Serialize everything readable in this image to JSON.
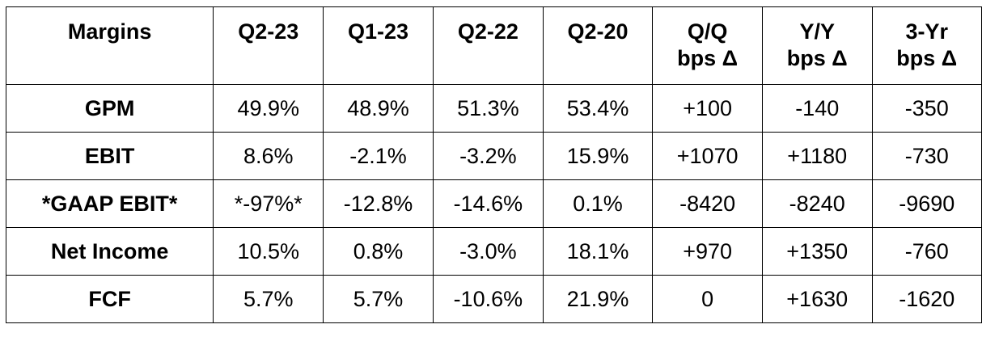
{
  "table": {
    "header": {
      "label": "Margins",
      "columns": [
        [
          "Q2-23"
        ],
        [
          "Q1-23"
        ],
        [
          "Q2-22"
        ],
        [
          "Q2-20"
        ],
        [
          "Q/Q",
          "bps Δ"
        ],
        [
          "Y/Y",
          "bps Δ"
        ],
        [
          "3-Yr",
          "bps Δ"
        ]
      ]
    },
    "rows": [
      {
        "label": "GPM",
        "values": [
          "49.9%",
          "48.9%",
          "51.3%",
          "53.4%",
          "+100",
          "-140",
          "-350"
        ]
      },
      {
        "label": "EBIT",
        "values": [
          "8.6%",
          "-2.1%",
          "-3.2%",
          "15.9%",
          "+1070",
          "+1180",
          "-730"
        ]
      },
      {
        "label": "*GAAP EBIT*",
        "values": [
          "*-97%*",
          "-12.8%",
          "-14.6%",
          "0.1%",
          "-8420",
          "-8240",
          "-9690"
        ]
      },
      {
        "label": "Net Income",
        "values": [
          "10.5%",
          "0.8%",
          "-3.0%",
          "18.1%",
          "+970",
          "+1350",
          "-760"
        ]
      },
      {
        "label": "FCF",
        "values": [
          "5.7%",
          "5.7%",
          "-10.6%",
          "21.9%",
          "0",
          "+1630",
          "-1620"
        ]
      }
    ]
  }
}
